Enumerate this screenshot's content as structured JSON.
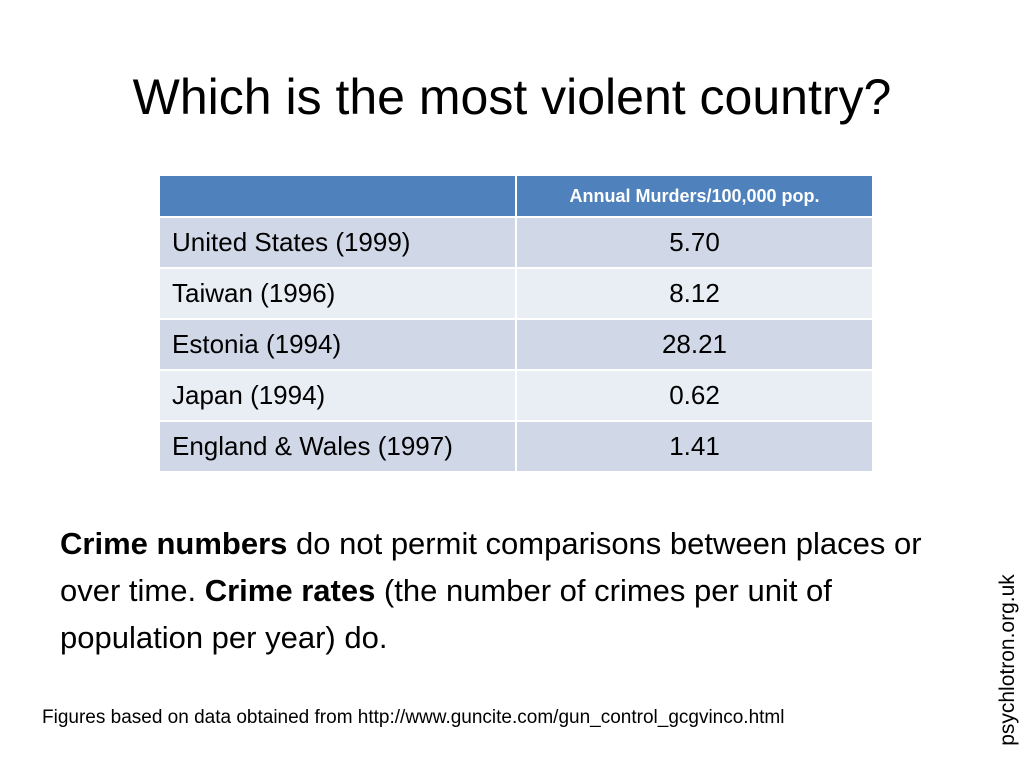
{
  "slide": {
    "title": "Which is the most violent country?",
    "table": {
      "header_blank": "",
      "header_value": "Annual Murders/100,000 pop.",
      "rows": [
        {
          "country": "United States (1999)",
          "value": "5.70"
        },
        {
          "country": "Taiwan (1996)",
          "value": "8.12"
        },
        {
          "country": "Estonia (1994)",
          "value": "28.21"
        },
        {
          "country": "Japan (1994)",
          "value": "0.62"
        },
        {
          "country": "England & Wales (1997)",
          "value": "1.41"
        }
      ]
    },
    "body": {
      "bold_1": "Crime numbers",
      "text_1": " do not permit comparisons between places or over time.  ",
      "bold_2": "Crime rates",
      "text_2": " (the number of crimes per unit of population per year) do."
    },
    "footnote": "Figures based on data obtained from http://www.guncite.com/gun_control_gcgvinco.html",
    "side_credit": "psychlotron.org.uk"
  },
  "colors": {
    "header_fill": "#4f81bd",
    "row_band_dark": "#d0d8e8",
    "row_band_light": "#e9edf4"
  }
}
